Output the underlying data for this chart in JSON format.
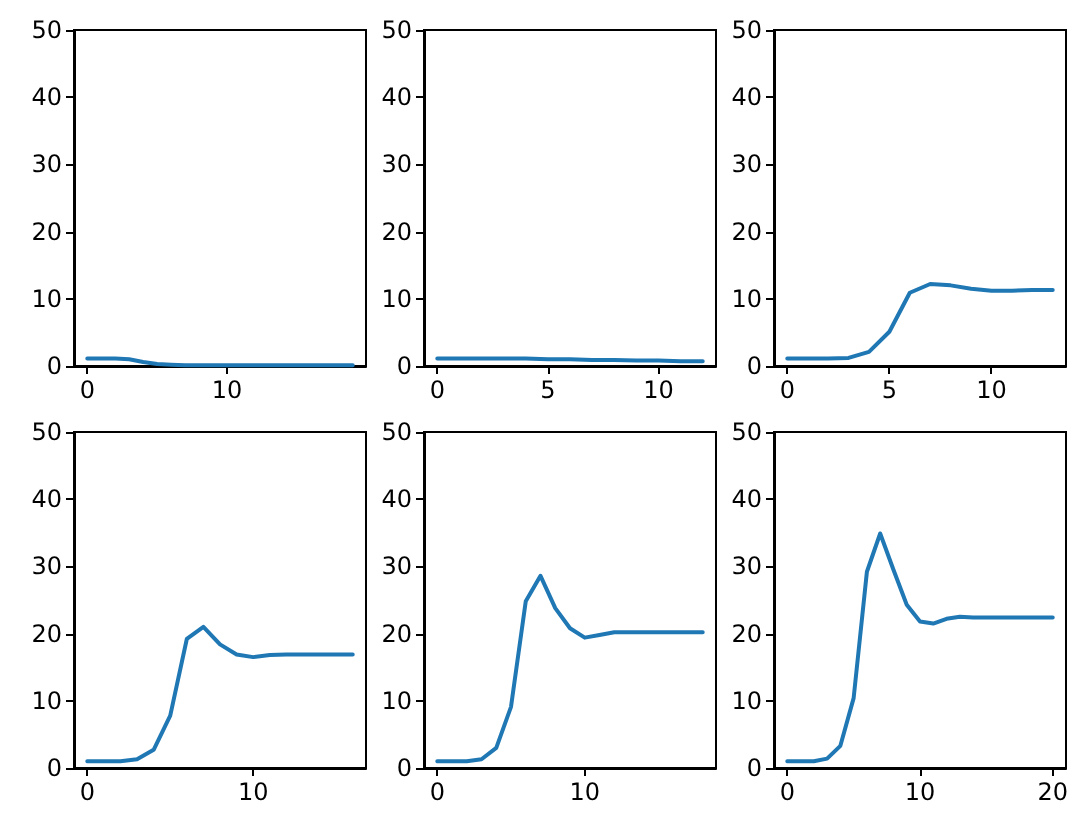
{
  "chart_data": [
    {
      "type": "line",
      "x": [
        0,
        1,
        2,
        3,
        4,
        5,
        6,
        7,
        8,
        9,
        10,
        11,
        12,
        13,
        14,
        15,
        16,
        17,
        18,
        19
      ],
      "values": [
        1.1,
        1.1,
        1.1,
        1.0,
        0.6,
        0.3,
        0.2,
        0.1,
        0.1,
        0.1,
        0.1,
        0.1,
        0.1,
        0.1,
        0.1,
        0.1,
        0.1,
        0.1,
        0.1,
        0.1
      ],
      "color": "#1f77b4",
      "xlim": [
        -0.95,
        19.95
      ],
      "xticks": [
        0,
        10
      ],
      "ylim": [
        0,
        50
      ],
      "yticks": [
        0,
        10,
        20,
        30,
        40,
        50
      ]
    },
    {
      "type": "line",
      "x": [
        0,
        1,
        2,
        3,
        4,
        5,
        6,
        7,
        8,
        9,
        10,
        11,
        12
      ],
      "values": [
        1.1,
        1.1,
        1.1,
        1.1,
        1.1,
        1.0,
        1.0,
        0.9,
        0.9,
        0.8,
        0.8,
        0.7,
        0.7
      ],
      "color": "#1f77b4",
      "xlim": [
        -0.6,
        12.6
      ],
      "xticks": [
        0,
        5,
        10
      ],
      "ylim": [
        0,
        50
      ],
      "yticks": [
        0,
        10,
        20,
        30,
        40,
        50
      ]
    },
    {
      "type": "line",
      "x": [
        0,
        1,
        2,
        3,
        4,
        5,
        6,
        7,
        8,
        9,
        10,
        11,
        12,
        13
      ],
      "values": [
        1.1,
        1.1,
        1.1,
        1.2,
        2.1,
        5.1,
        10.9,
        12.2,
        12.0,
        11.5,
        11.2,
        11.2,
        11.3,
        11.3
      ],
      "color": "#1f77b4",
      "xlim": [
        -0.65,
        13.65
      ],
      "xticks": [
        0,
        5,
        10
      ],
      "ylim": [
        0,
        50
      ],
      "yticks": [
        0,
        10,
        20,
        30,
        40,
        50
      ]
    },
    {
      "type": "line",
      "x": [
        0,
        1,
        2,
        3,
        4,
        5,
        6,
        7,
        8,
        9,
        10,
        11,
        12,
        13,
        14,
        15,
        16
      ],
      "values": [
        1.0,
        1.0,
        1.0,
        1.3,
        2.7,
        7.8,
        19.2,
        21.0,
        18.4,
        16.9,
        16.5,
        16.8,
        16.9,
        16.9,
        16.9,
        16.9,
        16.9
      ],
      "color": "#1f77b4",
      "xlim": [
        -0.8,
        16.8
      ],
      "xticks": [
        0,
        10
      ],
      "ylim": [
        0,
        50
      ],
      "yticks": [
        0,
        10,
        20,
        30,
        40,
        50
      ]
    },
    {
      "type": "line",
      "x": [
        0,
        1,
        2,
        3,
        4,
        5,
        6,
        7,
        8,
        9,
        10,
        11,
        12,
        13,
        14,
        15,
        16,
        17,
        18
      ],
      "values": [
        1.0,
        1.0,
        1.0,
        1.3,
        3.0,
        9.1,
        24.8,
        28.6,
        23.8,
        20.8,
        19.4,
        19.8,
        20.2,
        20.2,
        20.2,
        20.2,
        20.2,
        20.2,
        20.2
      ],
      "color": "#1f77b4",
      "xlim": [
        -0.9,
        18.9
      ],
      "xticks": [
        0,
        10
      ],
      "ylim": [
        0,
        50
      ],
      "yticks": [
        0,
        10,
        20,
        30,
        40,
        50
      ]
    },
    {
      "type": "line",
      "x": [
        0,
        1,
        2,
        3,
        4,
        5,
        6,
        7,
        8,
        9,
        10,
        11,
        12,
        13,
        14,
        15,
        16,
        17,
        18,
        19,
        20
      ],
      "values": [
        1.0,
        1.0,
        1.0,
        1.4,
        3.3,
        10.4,
        29.2,
        34.9,
        29.5,
        24.3,
        21.8,
        21.5,
        22.2,
        22.5,
        22.4,
        22.4,
        22.4,
        22.4,
        22.4,
        22.4,
        22.4
      ],
      "color": "#1f77b4",
      "xlim": [
        -1,
        21
      ],
      "xticks": [
        0,
        10,
        20
      ],
      "ylim": [
        0,
        50
      ],
      "yticks": [
        0,
        10,
        20,
        30,
        40,
        50
      ]
    }
  ]
}
